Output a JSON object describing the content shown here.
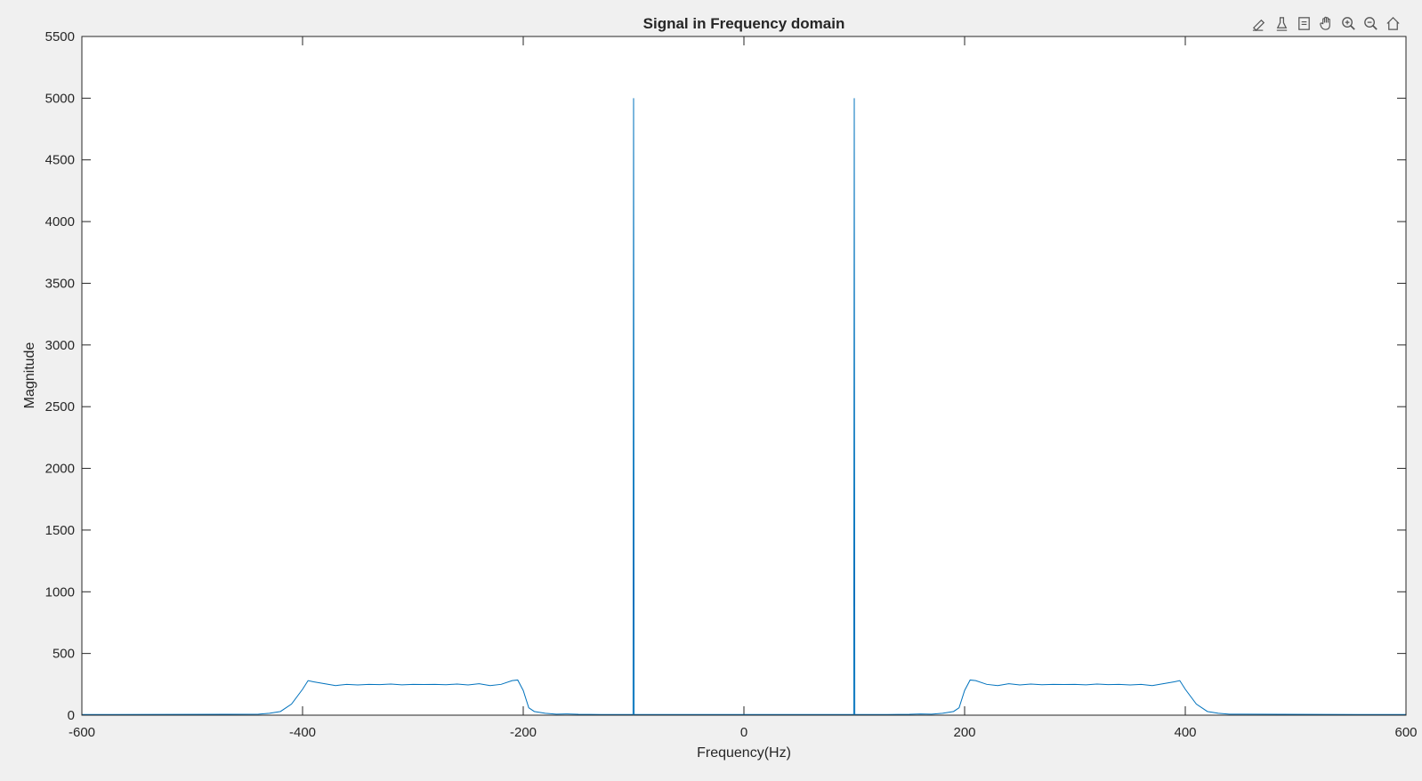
{
  "toolbar": {
    "icons": [
      "brush-data-icon",
      "data-tip-icon",
      "export-icon",
      "pan-hand-icon",
      "zoom-in-icon",
      "zoom-out-icon",
      "restore-view-icon"
    ]
  },
  "chart_data": {
    "type": "line",
    "title": "Signal in Frequency domain",
    "xlabel": "Frequency(Hz)",
    "ylabel": "Magnitude",
    "xlim": [
      -600,
      600
    ],
    "ylim": [
      0,
      5500
    ],
    "xticks": [
      -600,
      -400,
      -200,
      0,
      200,
      400,
      600
    ],
    "yticks": [
      0,
      500,
      1000,
      1500,
      2000,
      2500,
      3000,
      3500,
      4000,
      4500,
      5000,
      5500
    ],
    "grid": false,
    "legend": "none",
    "line_color": "#0072bd",
    "series": [
      {
        "x": [
          -600,
          -440,
          -430,
          -420,
          -410,
          -400,
          -395,
          -390,
          -380,
          -370,
          -360,
          -350,
          -340,
          -330,
          -320,
          -310,
          -300,
          -290,
          -280,
          -270,
          -260,
          -250,
          -240,
          -230,
          -220,
          -210,
          -205,
          -200,
          -195,
          -190,
          -180,
          -170,
          -160,
          -150,
          -140,
          -130,
          -120,
          -110,
          -100.5,
          -100,
          -99.5,
          -90,
          -80,
          -60,
          -40,
          -20,
          0,
          20,
          40,
          60,
          80,
          90,
          99.5,
          100,
          100.5,
          110,
          120,
          130,
          140,
          150,
          160,
          170,
          180,
          190,
          195,
          200,
          205,
          210,
          220,
          230,
          240,
          250,
          260,
          270,
          280,
          290,
          300,
          310,
          320,
          330,
          340,
          350,
          360,
          370,
          380,
          390,
          395,
          400,
          410,
          420,
          430,
          440,
          600
        ],
        "y": [
          5,
          8,
          15,
          30,
          90,
          210,
          280,
          270,
          255,
          240,
          250,
          245,
          250,
          248,
          252,
          246,
          250,
          249,
          250,
          247,
          252,
          245,
          255,
          240,
          250,
          280,
          285,
          200,
          60,
          30,
          15,
          8,
          10,
          7,
          6,
          5,
          5,
          5,
          5,
          5000,
          5,
          5,
          5,
          5,
          5,
          5,
          5,
          5,
          5,
          5,
          5,
          5,
          5,
          5000,
          5,
          5,
          5,
          5,
          6,
          7,
          10,
          8,
          15,
          30,
          60,
          200,
          285,
          280,
          250,
          240,
          255,
          245,
          252,
          247,
          250,
          249,
          250,
          246,
          252,
          248,
          250,
          245,
          250,
          240,
          255,
          270,
          280,
          210,
          90,
          30,
          15,
          8,
          5
        ]
      }
    ]
  }
}
